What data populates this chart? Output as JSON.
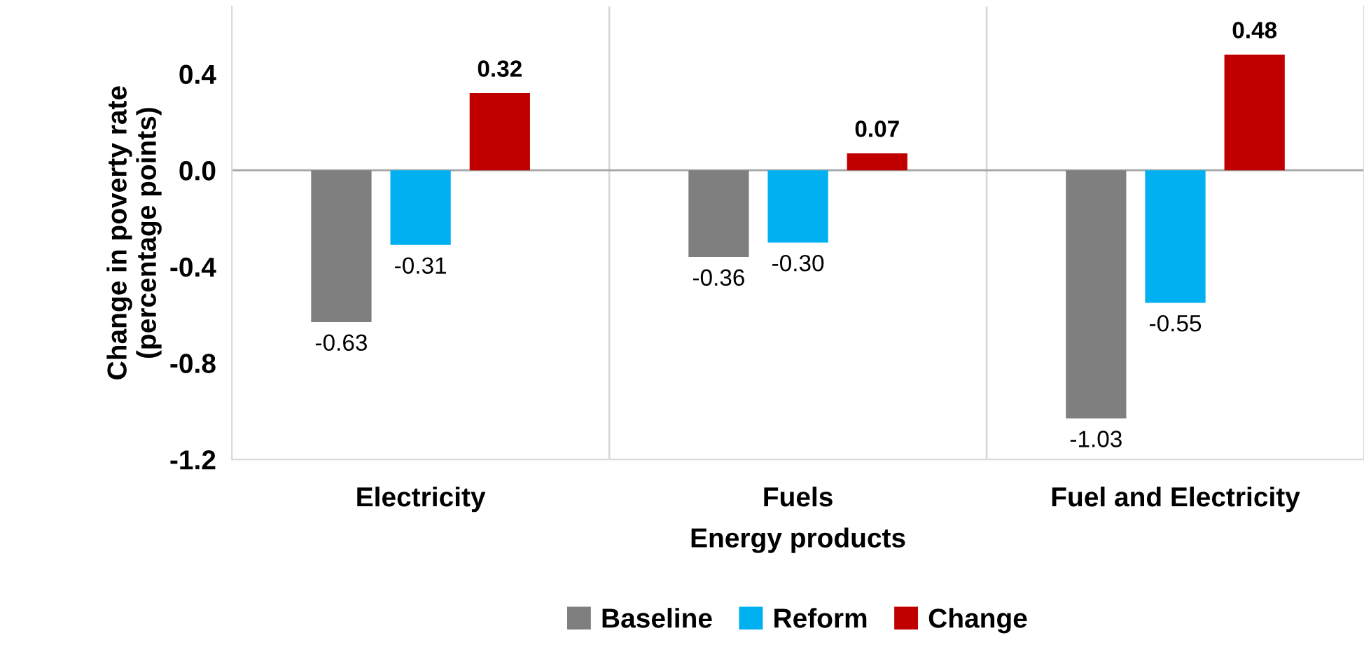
{
  "chart_data": {
    "type": "bar",
    "xlabel": "Energy products",
    "ylabel": "Change in poverty rate\n(percentage points)",
    "categories": [
      "Electricity",
      "Fuels",
      "Fuel and Electricity"
    ],
    "series": [
      {
        "name": "Baseline",
        "color": "#7f7f7f",
        "values": [
          -0.63,
          -0.36,
          -1.03
        ],
        "value_labels": [
          "-0.63",
          "-0.36",
          "-1.03"
        ]
      },
      {
        "name": "Reform",
        "color": "#00b0f0",
        "values": [
          -0.31,
          -0.3,
          -0.55
        ],
        "value_labels": [
          "-0.31",
          "-0.30",
          "-0.55"
        ]
      },
      {
        "name": "Change",
        "color": "#c00000",
        "values": [
          0.32,
          0.07,
          0.48
        ],
        "value_labels": [
          "0.32",
          "0.07",
          "0.48"
        ]
      }
    ],
    "ylim": [
      -1.2,
      0.68
    ],
    "yticks": [
      {
        "value": -1.2,
        "label": "-1.2"
      },
      {
        "value": -0.8,
        "label": "-0.8"
      },
      {
        "value": -0.4,
        "label": "-0.4"
      },
      {
        "value": 0.0,
        "label": "0.0"
      },
      {
        "value": 0.4,
        "label": "0.4"
      }
    ],
    "grid": "x",
    "legend": "bottom"
  }
}
